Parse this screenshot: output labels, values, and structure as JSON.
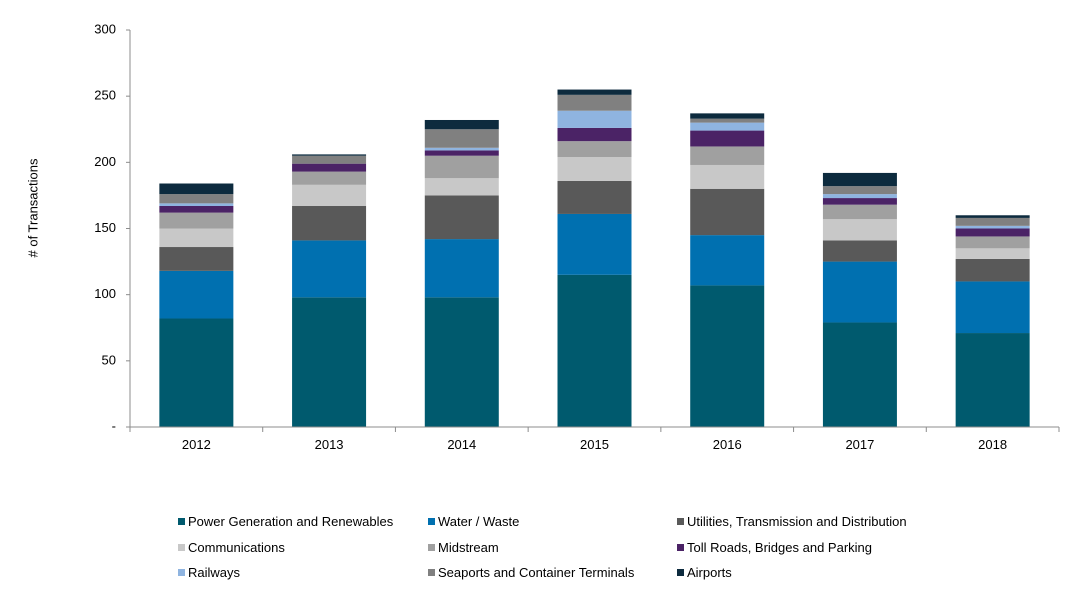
{
  "chart_data": {
    "type": "bar",
    "stacked": true,
    "title": "",
    "xlabel": "",
    "ylabel": "# of Transactions",
    "ylim": [
      0,
      300
    ],
    "yticks": [
      "-",
      "50",
      "100",
      "150",
      "200",
      "250",
      "300"
    ],
    "categories": [
      "2012",
      "2013",
      "2014",
      "2015",
      "2016",
      "2017",
      "2018"
    ],
    "grid": false,
    "legend_position": "bottom",
    "series": [
      {
        "name": "Power Generation and Renewables",
        "color": "#005a6e",
        "values": [
          82,
          98,
          98,
          115,
          107,
          79,
          71
        ]
      },
      {
        "name": "Water / Waste",
        "color": "#0070b0",
        "values": [
          36,
          43,
          44,
          46,
          38,
          46,
          39
        ]
      },
      {
        "name": "Utilities, Transmission and Distribution",
        "color": "#595959",
        "values": [
          18,
          26,
          33,
          25,
          35,
          16,
          17
        ]
      },
      {
        "name": "Communications",
        "color": "#c8c8c8",
        "values": [
          14,
          16,
          13,
          18,
          18,
          16,
          8
        ]
      },
      {
        "name": "Midstream",
        "color": "#a0a0a0",
        "values": [
          12,
          10,
          17,
          12,
          14,
          11,
          9
        ]
      },
      {
        "name": "Toll Roads, Bridges and Parking",
        "color": "#4b2366",
        "values": [
          5,
          6,
          4,
          10,
          12,
          5,
          6
        ]
      },
      {
        "name": "Railways",
        "color": "#8fb4e0",
        "values": [
          2,
          0,
          2,
          13,
          6,
          3,
          2
        ]
      },
      {
        "name": "Seaports and Container Terminals",
        "color": "#808080",
        "values": [
          7,
          6,
          14,
          12,
          3,
          6,
          6
        ]
      },
      {
        "name": "Airports",
        "color": "#0d2b3e",
        "values": [
          8,
          1,
          7,
          4,
          4,
          10,
          2
        ]
      }
    ]
  }
}
